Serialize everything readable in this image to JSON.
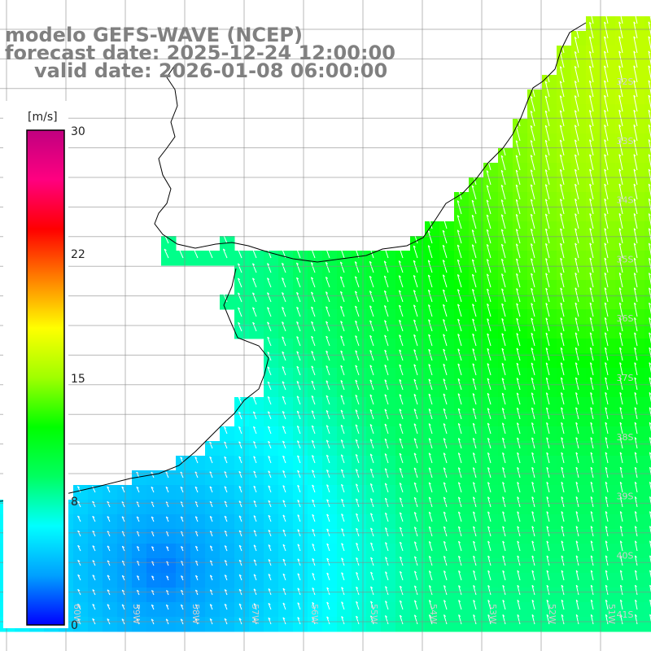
{
  "title": {
    "line1": "modelo GEFS-WAVE (NCEP)",
    "line2": "forecast date: 2025-12-24 12:00:00",
    "line3": "valid date: 2026-01-08 06:00:00"
  },
  "colorbar": {
    "unit_label": "[m/s]",
    "ticks": [
      "30",
      "22",
      "15",
      "8",
      "0"
    ],
    "colors": [
      "#0000ff",
      "#00a0ff",
      "#00ffff",
      "#00ff60",
      "#00ff00",
      "#a0ff00",
      "#ffff00",
      "#ff8000",
      "#ff0000",
      "#ff0080",
      "#c00080"
    ]
  },
  "axes": {
    "lat_labels": [
      "32S",
      "33S",
      "34S",
      "35S",
      "36S",
      "37S",
      "38S",
      "39S",
      "40S",
      "41S"
    ],
    "lon_labels": [
      "61W",
      "60W",
      "59W",
      "58W",
      "57W",
      "56W",
      "55W",
      "54W",
      "53W",
      "52W",
      "51W"
    ]
  },
  "map_data": {
    "variable": "wind speed",
    "units": "m/s",
    "description_regions": [
      {
        "area": "northeast (off southern Brazil)",
        "speed_range": [
          13,
          16
        ]
      },
      {
        "area": "central east",
        "speed_range": [
          9,
          12
        ]
      },
      {
        "area": "Rio de la Plata estuary",
        "speed_range": [
          7,
          9
        ]
      },
      {
        "area": "southwest (off Buenos Aires coast)",
        "speed_range": [
          2,
          5
        ]
      }
    ]
  }
}
